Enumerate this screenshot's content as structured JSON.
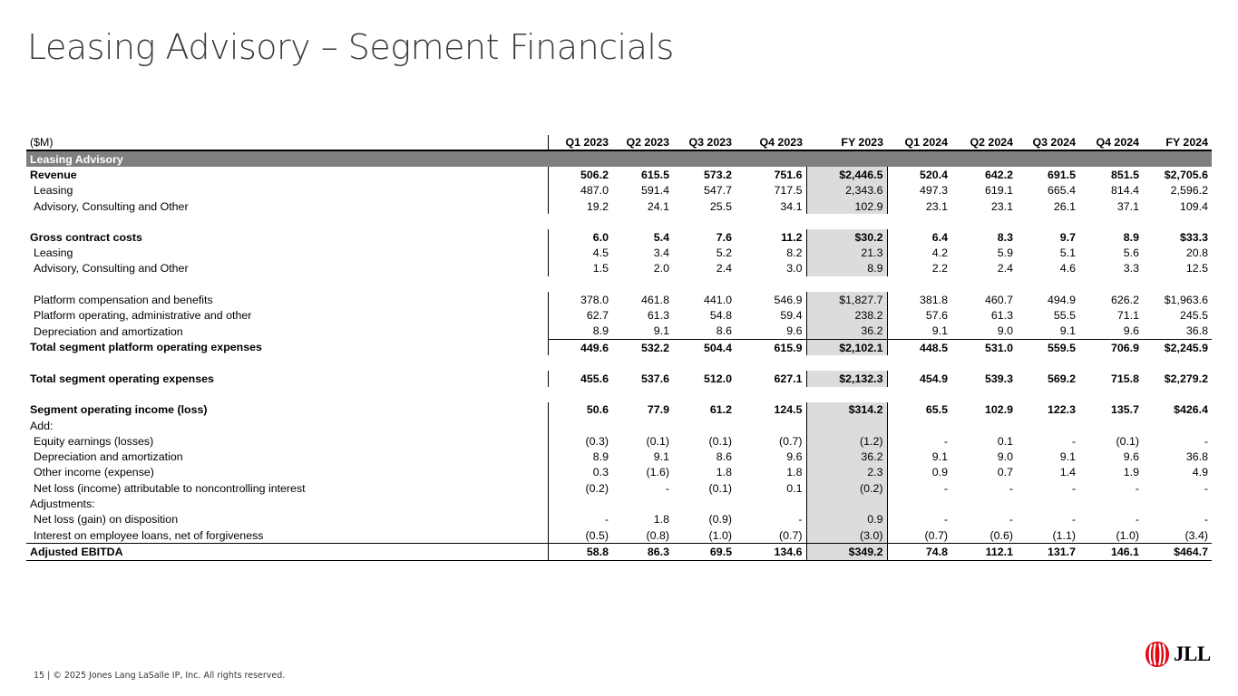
{
  "page": {
    "title": "Leasing Advisory – Segment Financials",
    "footer": "15  |  © 2025 Jones Lang LaSalle IP, Inc. All rights reserved.",
    "logo_text": "JLL",
    "colors": {
      "section_fill": "#7f7f7f",
      "fy_fill": "#dcdcdc",
      "logo_red": "#e30613"
    }
  },
  "table": {
    "headers": [
      "($M)",
      "Q1 2023",
      "Q2 2023",
      "Q3 2023",
      "Q4 2023",
      "FY 2023",
      "Q1 2024",
      "Q2 2024",
      "Q3 2024",
      "Q4 2024",
      "FY 2024"
    ],
    "section_label": "Leasing Advisory",
    "rows": [
      {
        "label": "Revenue",
        "values": [
          "506.2",
          "615.5",
          "573.2",
          "751.6",
          "$2,446.5",
          "520.4",
          "642.2",
          "691.5",
          "851.5",
          "$2,705.6"
        ]
      },
      {
        "label": "Leasing",
        "values": [
          "487.0",
          "591.4",
          "547.7",
          "717.5",
          "2,343.6",
          "497.3",
          "619.1",
          "665.4",
          "814.4",
          "2,596.2"
        ]
      },
      {
        "label": "Advisory, Consulting and Other",
        "values": [
          "19.2",
          "24.1",
          "25.5",
          "34.1",
          "102.9",
          "23.1",
          "23.1",
          "26.1",
          "37.1",
          "109.4"
        ]
      },
      {
        "label": "Gross contract costs",
        "values": [
          "6.0",
          "5.4",
          "7.6",
          "11.2",
          "$30.2",
          "6.4",
          "8.3",
          "9.7",
          "8.9",
          "$33.3"
        ]
      },
      {
        "label": "Leasing",
        "values": [
          "4.5",
          "3.4",
          "5.2",
          "8.2",
          "21.3",
          "4.2",
          "5.9",
          "5.1",
          "5.6",
          "20.8"
        ]
      },
      {
        "label": "Advisory, Consulting and Other",
        "values": [
          "1.5",
          "2.0",
          "2.4",
          "3.0",
          "8.9",
          "2.2",
          "2.4",
          "4.6",
          "3.3",
          "12.5"
        ]
      },
      {
        "label": "Platform compensation and benefits",
        "values": [
          "378.0",
          "461.8",
          "441.0",
          "546.9",
          "$1,827.7",
          "381.8",
          "460.7",
          "494.9",
          "626.2",
          "$1,963.6"
        ]
      },
      {
        "label": "Platform operating, administrative and other",
        "values": [
          "62.7",
          "61.3",
          "54.8",
          "59.4",
          "238.2",
          "57.6",
          "61.3",
          "55.5",
          "71.1",
          "245.5"
        ]
      },
      {
        "label": "Depreciation and amortization",
        "values": [
          "8.9",
          "9.1",
          "8.6",
          "9.6",
          "36.2",
          "9.1",
          "9.0",
          "9.1",
          "9.6",
          "36.8"
        ]
      },
      {
        "label": "Total segment platform operating expenses",
        "values": [
          "449.6",
          "532.2",
          "504.4",
          "615.9",
          "$2,102.1",
          "448.5",
          "531.0",
          "559.5",
          "706.9",
          "$2,245.9"
        ]
      },
      {
        "label": "Total segment operating expenses",
        "values": [
          "455.6",
          "537.6",
          "512.0",
          "627.1",
          "$2,132.3",
          "454.9",
          "539.3",
          "569.2",
          "715.8",
          "$2,279.2"
        ]
      },
      {
        "label": "Segment operating income (loss)",
        "values": [
          "50.6",
          "77.9",
          "61.2",
          "124.5",
          "$314.2",
          "65.5",
          "102.9",
          "122.3",
          "135.7",
          "$426.4"
        ]
      },
      {
        "label": "Add:",
        "values": [
          "",
          "",
          "",
          "",
          "",
          "",
          "",
          "",
          "",
          ""
        ]
      },
      {
        "label": "Equity earnings (losses)",
        "values": [
          "(0.3)",
          "(0.1)",
          "(0.1)",
          "(0.7)",
          "(1.2)",
          "-",
          "0.1",
          "-",
          "(0.1)",
          "-"
        ]
      },
      {
        "label": "Depreciation and amortization",
        "values": [
          "8.9",
          "9.1",
          "8.6",
          "9.6",
          "36.2",
          "9.1",
          "9.0",
          "9.1",
          "9.6",
          "36.8"
        ]
      },
      {
        "label": "Other income (expense)",
        "values": [
          "0.3",
          "(1.6)",
          "1.8",
          "1.8",
          "2.3",
          "0.9",
          "0.7",
          "1.4",
          "1.9",
          "4.9"
        ]
      },
      {
        "label": "Net loss (income) attributable to noncontrolling interest",
        "values": [
          "(0.2)",
          "-",
          "(0.1)",
          "0.1",
          "(0.2)",
          "-",
          "-",
          "-",
          "-",
          "-"
        ]
      },
      {
        "label": "Adjustments:",
        "values": [
          "",
          "",
          "",
          "",
          "",
          "",
          "",
          "",
          "",
          ""
        ]
      },
      {
        "label": "Net loss (gain) on disposition",
        "values": [
          "-",
          "1.8",
          "(0.9)",
          "-",
          "0.9",
          "-",
          "-",
          "-",
          "-",
          "-"
        ]
      },
      {
        "label": "Interest on employee loans, net of forgiveness",
        "values": [
          "(0.5)",
          "(0.8)",
          "(1.0)",
          "(0.7)",
          "(3.0)",
          "(0.7)",
          "(0.6)",
          "(1.1)",
          "(1.0)",
          "(3.4)"
        ]
      },
      {
        "label": "Adjusted EBITDA",
        "values": [
          "58.8",
          "86.3",
          "69.5",
          "134.6",
          "$349.2",
          "74.8",
          "112.1",
          "131.7",
          "146.1",
          "$464.7"
        ]
      }
    ]
  }
}
